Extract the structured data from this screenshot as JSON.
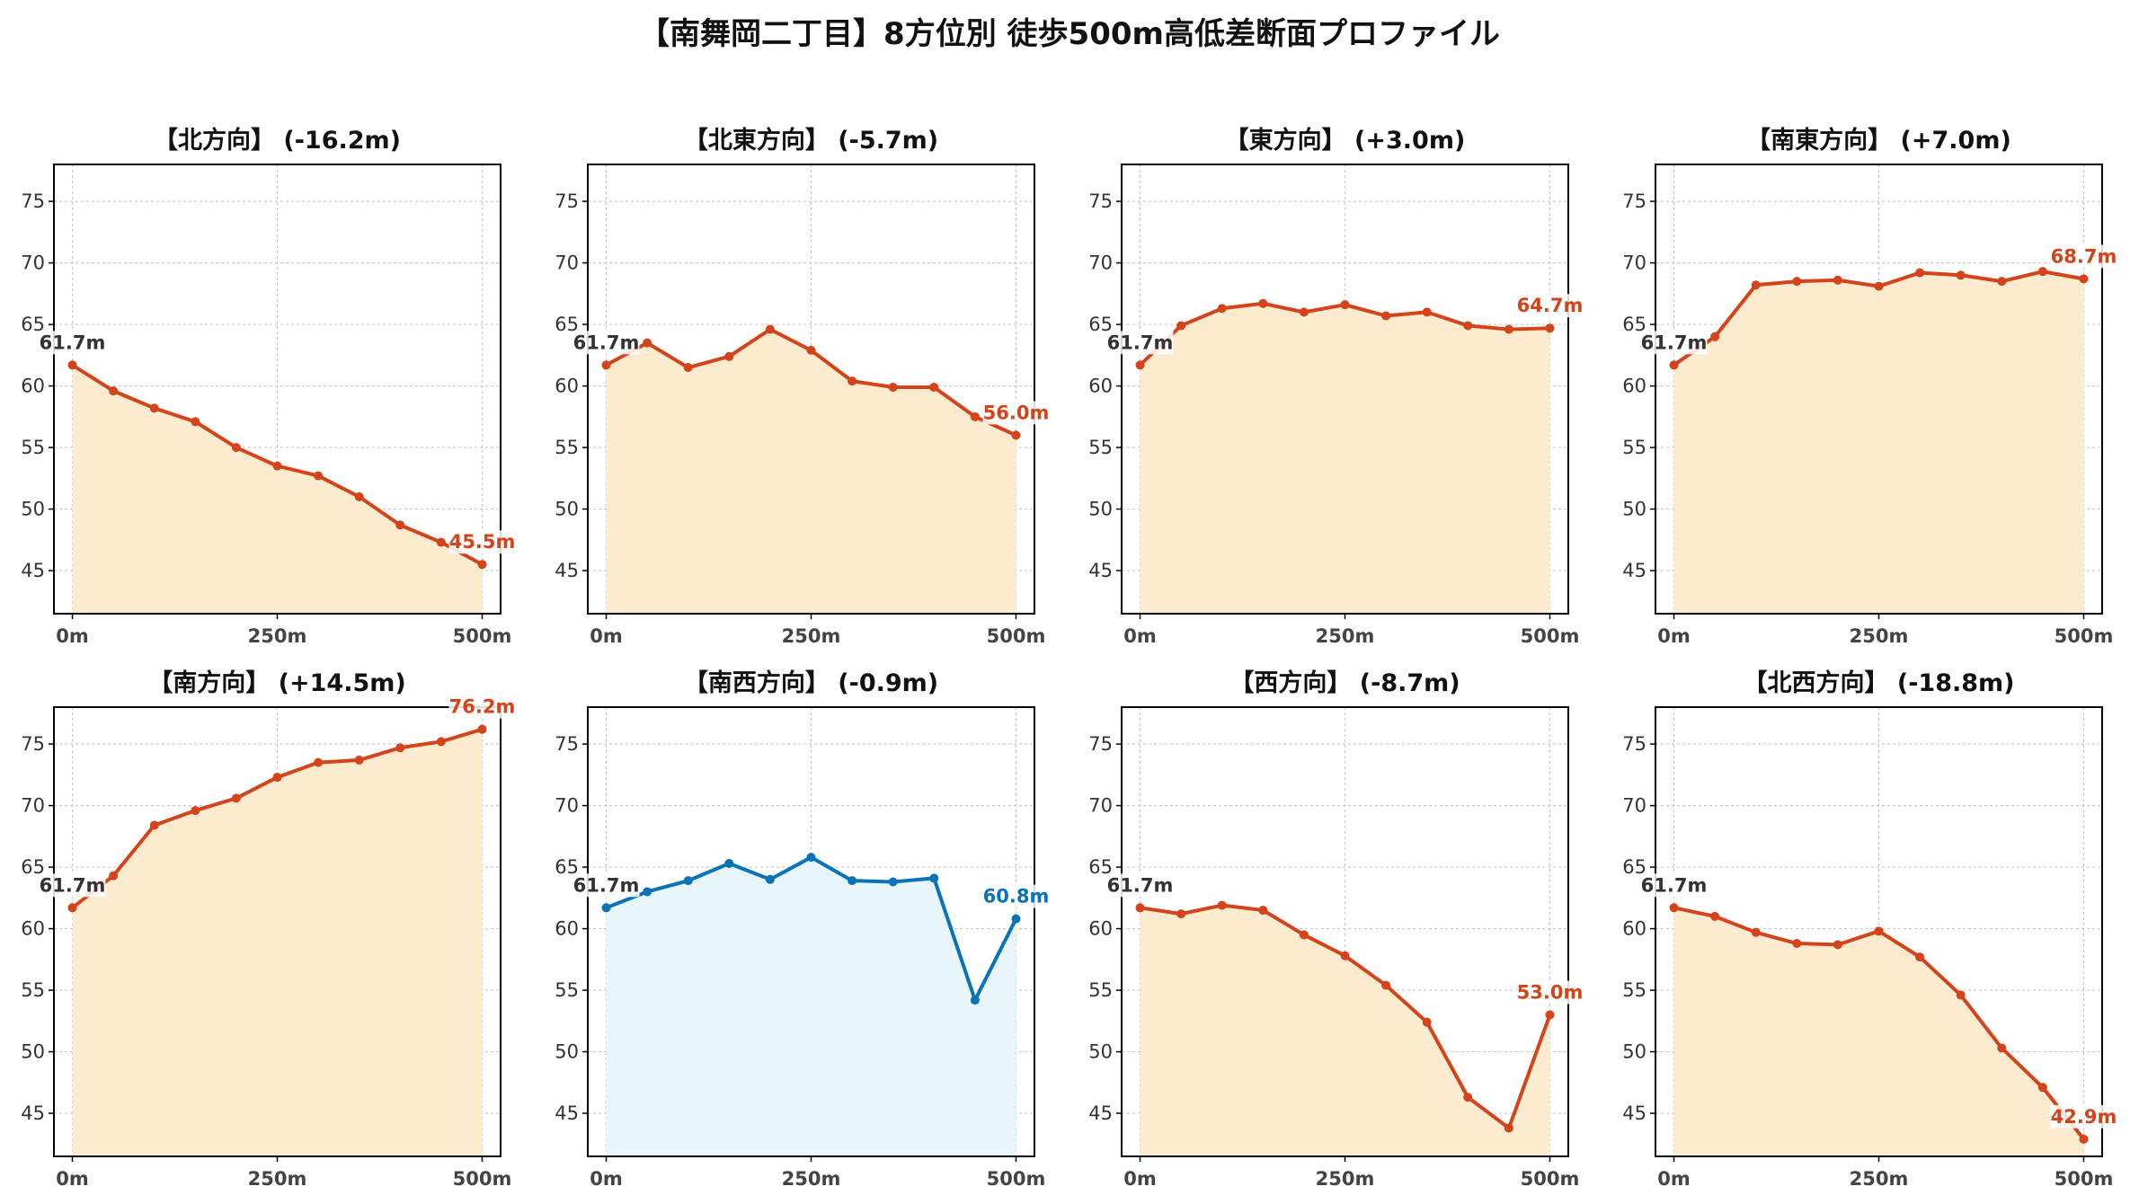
{
  "suptitle": "【南舞岡二丁目】8方位別 徒歩500m高低差断面プロファイル",
  "colors": {
    "down_up_line": "#d4431a",
    "fill_warm": "#fdebd0",
    "line_blue": "#0873b8",
    "fill_blue": "#e8f5fb",
    "start_label": "#333333"
  },
  "chart_data": [
    {
      "type": "area",
      "title": "【北方向】 (-16.2m)",
      "x": [
        0,
        50,
        100,
        150,
        200,
        250,
        300,
        350,
        400,
        450,
        500
      ],
      "values": [
        61.7,
        59.6,
        58.2,
        57.1,
        55.0,
        53.5,
        52.7,
        51.0,
        48.7,
        47.3,
        45.5
      ],
      "start_label": "61.7m",
      "end_label": "45.5m",
      "color": "#d4431a",
      "fill": "#fdebd0",
      "xlim": [
        0,
        500
      ],
      "ylim": [
        41.5,
        78
      ],
      "xticks": [
        "0m",
        "250m",
        "500m"
      ],
      "yticks": [
        45,
        50,
        55,
        60,
        65,
        70,
        75
      ],
      "grid": true
    },
    {
      "type": "area",
      "title": "【北東方向】 (-5.7m)",
      "x": [
        0,
        50,
        100,
        150,
        200,
        250,
        300,
        350,
        400,
        450,
        500
      ],
      "values": [
        61.7,
        63.5,
        61.5,
        62.4,
        64.6,
        62.9,
        60.4,
        59.9,
        59.9,
        57.5,
        56.0
      ],
      "start_label": "61.7m",
      "end_label": "56.0m",
      "color": "#d4431a",
      "fill": "#fdebd0",
      "xlim": [
        0,
        500
      ],
      "ylim": [
        41.5,
        78
      ],
      "xticks": [
        "0m",
        "250m",
        "500m"
      ],
      "yticks": [
        45,
        50,
        55,
        60,
        65,
        70,
        75
      ],
      "grid": true
    },
    {
      "type": "area",
      "title": "【東方向】 (+3.0m)",
      "x": [
        0,
        50,
        100,
        150,
        200,
        250,
        300,
        350,
        400,
        450,
        500
      ],
      "values": [
        61.7,
        64.9,
        66.3,
        66.7,
        66.0,
        66.6,
        65.7,
        66.0,
        64.9,
        64.6,
        64.7
      ],
      "start_label": "61.7m",
      "end_label": "64.7m",
      "color": "#d4431a",
      "fill": "#fdebd0",
      "xlim": [
        0,
        500
      ],
      "ylim": [
        41.5,
        78
      ],
      "xticks": [
        "0m",
        "250m",
        "500m"
      ],
      "yticks": [
        45,
        50,
        55,
        60,
        65,
        70,
        75
      ],
      "grid": true
    },
    {
      "type": "area",
      "title": "【南東方向】 (+7.0m)",
      "x": [
        0,
        50,
        100,
        150,
        200,
        250,
        300,
        350,
        400,
        450,
        500
      ],
      "values": [
        61.7,
        64.0,
        68.2,
        68.5,
        68.6,
        68.1,
        69.2,
        69.0,
        68.5,
        69.3,
        68.7
      ],
      "start_label": "61.7m",
      "end_label": "68.7m",
      "color": "#d4431a",
      "fill": "#fdebd0",
      "xlim": [
        0,
        500
      ],
      "ylim": [
        41.5,
        78
      ],
      "xticks": [
        "0m",
        "250m",
        "500m"
      ],
      "yticks": [
        45,
        50,
        55,
        60,
        65,
        70,
        75
      ],
      "grid": true
    },
    {
      "type": "area",
      "title": "【南方向】 (+14.5m)",
      "x": [
        0,
        50,
        100,
        150,
        200,
        250,
        300,
        350,
        400,
        450,
        500
      ],
      "values": [
        61.7,
        64.3,
        68.4,
        69.6,
        70.6,
        72.3,
        73.5,
        73.7,
        74.7,
        75.2,
        76.2
      ],
      "start_label": "61.7m",
      "end_label": "76.2m",
      "color": "#d4431a",
      "fill": "#fdebd0",
      "xlim": [
        0,
        500
      ],
      "ylim": [
        41.5,
        78
      ],
      "xticks": [
        "0m",
        "250m",
        "500m"
      ],
      "yticks": [
        45,
        50,
        55,
        60,
        65,
        70,
        75
      ],
      "grid": true
    },
    {
      "type": "area",
      "title": "【南西方向】 (-0.9m)",
      "x": [
        0,
        50,
        100,
        150,
        200,
        250,
        300,
        350,
        400,
        450,
        500
      ],
      "values": [
        61.7,
        63.0,
        63.9,
        65.3,
        64.0,
        65.8,
        63.9,
        63.8,
        64.1,
        54.2,
        60.8
      ],
      "start_label": "61.7m",
      "end_label": "60.8m",
      "color": "#0873b8",
      "fill": "#e8f5fb",
      "xlim": [
        0,
        500
      ],
      "ylim": [
        41.5,
        78
      ],
      "xticks": [
        "0m",
        "250m",
        "500m"
      ],
      "yticks": [
        45,
        50,
        55,
        60,
        65,
        70,
        75
      ],
      "grid": true
    },
    {
      "type": "area",
      "title": "【西方向】 (-8.7m)",
      "x": [
        0,
        50,
        100,
        150,
        200,
        250,
        300,
        350,
        400,
        450,
        500
      ],
      "values": [
        61.7,
        61.2,
        61.9,
        61.5,
        59.5,
        57.8,
        55.4,
        52.4,
        46.3,
        43.8,
        53.0
      ],
      "start_label": "61.7m",
      "end_label": "53.0m",
      "color": "#d4431a",
      "fill": "#fdebd0",
      "xlim": [
        0,
        500
      ],
      "ylim": [
        41.5,
        78
      ],
      "xticks": [
        "0m",
        "250m",
        "500m"
      ],
      "yticks": [
        45,
        50,
        55,
        60,
        65,
        70,
        75
      ],
      "grid": true
    },
    {
      "type": "area",
      "title": "【北西方向】 (-18.8m)",
      "x": [
        0,
        50,
        100,
        150,
        200,
        250,
        300,
        350,
        400,
        450,
        500
      ],
      "values": [
        61.7,
        61.0,
        59.7,
        58.8,
        58.7,
        59.8,
        57.7,
        54.6,
        50.3,
        47.1,
        42.9
      ],
      "start_label": "61.7m",
      "end_label": "42.9m",
      "color": "#d4431a",
      "fill": "#fdebd0",
      "xlim": [
        0,
        500
      ],
      "ylim": [
        41.5,
        78
      ],
      "xticks": [
        "0m",
        "250m",
        "500m"
      ],
      "yticks": [
        45,
        50,
        55,
        60,
        65,
        70,
        75
      ],
      "grid": true
    }
  ]
}
